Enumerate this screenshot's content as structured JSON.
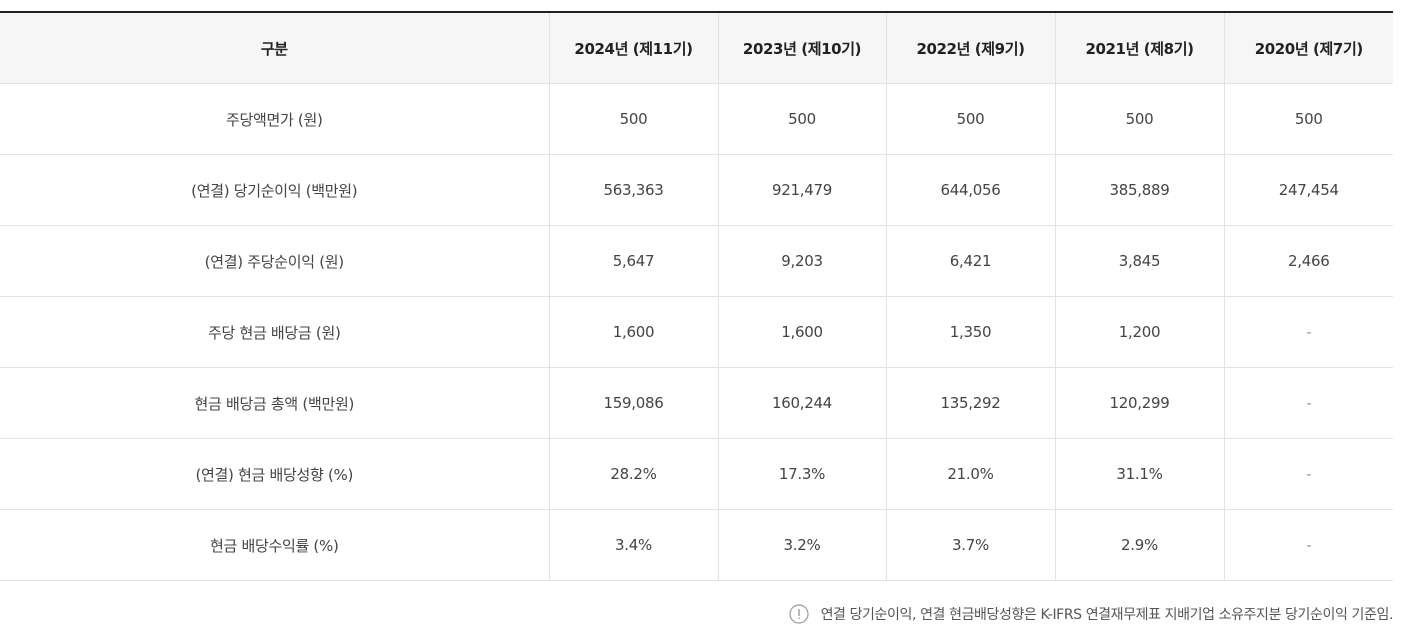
{
  "table": {
    "headers": [
      "구분",
      "2024년 (제11기)",
      "2023년 (제10기)",
      "2022년 (제9기)",
      "2021년 (제8기)",
      "2020년 (제7기)"
    ],
    "rows": [
      {
        "label": "주당액면가 (원)",
        "values": [
          "500",
          "500",
          "500",
          "500",
          "500"
        ]
      },
      {
        "label": "(연결) 당기순이익 (백만원)",
        "values": [
          "563,363",
          "921,479",
          "644,056",
          "385,889",
          "247,454"
        ]
      },
      {
        "label": "(연결) 주당순이익 (원)",
        "values": [
          "5,647",
          "9,203",
          "6,421",
          "3,845",
          "2,466"
        ]
      },
      {
        "label": "주당 현금 배당금 (원)",
        "values": [
          "1,600",
          "1,600",
          "1,350",
          "1,200",
          "-"
        ]
      },
      {
        "label": "현금 배당금 총액 (백만원)",
        "values": [
          "159,086",
          "160,244",
          "135,292",
          "120,299",
          "-"
        ]
      },
      {
        "label": "(연결) 현금 배당성향 (%)",
        "values": [
          "28.2%",
          "17.3%",
          "21.0%",
          "31.1%",
          "-"
        ]
      },
      {
        "label": "현금 배당수익률 (%)",
        "values": [
          "3.4%",
          "3.2%",
          "3.7%",
          "2.9%",
          "-"
        ]
      }
    ]
  },
  "footnote": {
    "icon": "info-icon",
    "text": "연결 당기순이익, 연결 현금배당성향은 K-IFRS 연결재무제표 지배기업 소유주지분 당기순이익 기준임."
  }
}
